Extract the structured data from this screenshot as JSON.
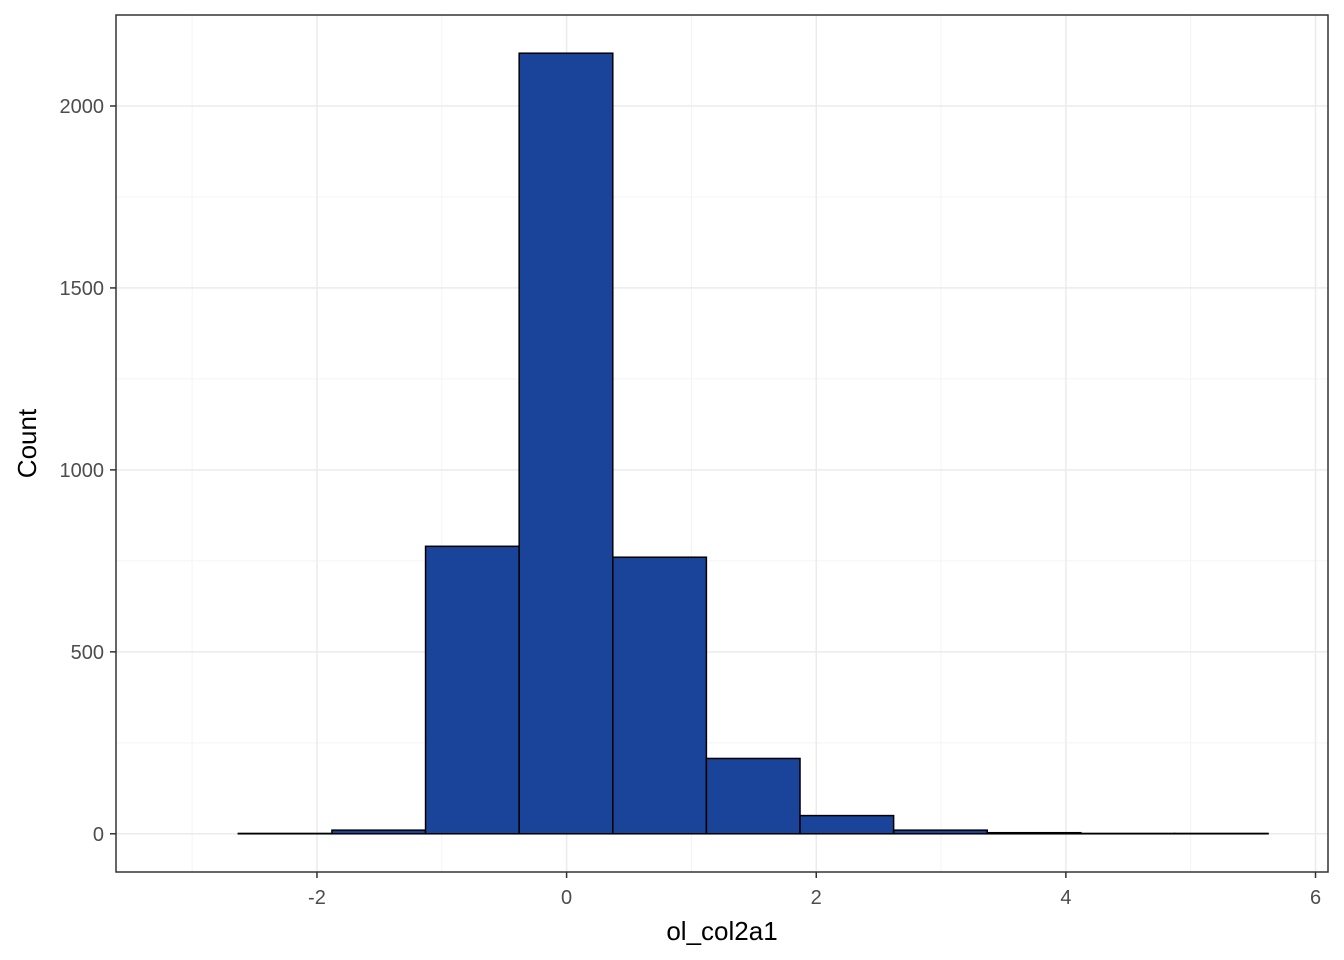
{
  "chart_data": {
    "type": "bar",
    "subtype": "histogram",
    "title": "",
    "xlabel": "ol_col2a1",
    "ylabel": "Count",
    "xlim": [
      -3.61,
      6.1
    ],
    "ylim": [
      -105,
      2250
    ],
    "x_ticks": [
      -2,
      0,
      2,
      4,
      6
    ],
    "y_ticks": [
      0,
      500,
      1000,
      1500,
      2000
    ],
    "bin_width": 0.75,
    "bins": [
      {
        "x0": -3.38,
        "x1": -2.63,
        "count": 0
      },
      {
        "x0": -2.63,
        "x1": -1.88,
        "count": 1
      },
      {
        "x0": -1.88,
        "x1": -1.13,
        "count": 10
      },
      {
        "x0": -1.13,
        "x1": -0.38,
        "count": 790
      },
      {
        "x0": -0.38,
        "x1": 0.37,
        "count": 2145
      },
      {
        "x0": 0.37,
        "x1": 1.12,
        "count": 760
      },
      {
        "x0": 1.12,
        "x1": 1.87,
        "count": 207
      },
      {
        "x0": 1.87,
        "x1": 2.62,
        "count": 50
      },
      {
        "x0": 2.62,
        "x1": 3.37,
        "count": 10
      },
      {
        "x0": 3.37,
        "x1": 4.12,
        "count": 3
      },
      {
        "x0": 4.12,
        "x1": 4.87,
        "count": 1
      },
      {
        "x0": 4.87,
        "x1": 5.62,
        "count": 1
      }
    ],
    "grid": true,
    "colors": {
      "bar_fill": "#1a4499",
      "bar_stroke": "#000000",
      "panel_border": "#333333",
      "grid_major": "#ebebeb",
      "grid_minor": "#f4f4f4"
    }
  }
}
